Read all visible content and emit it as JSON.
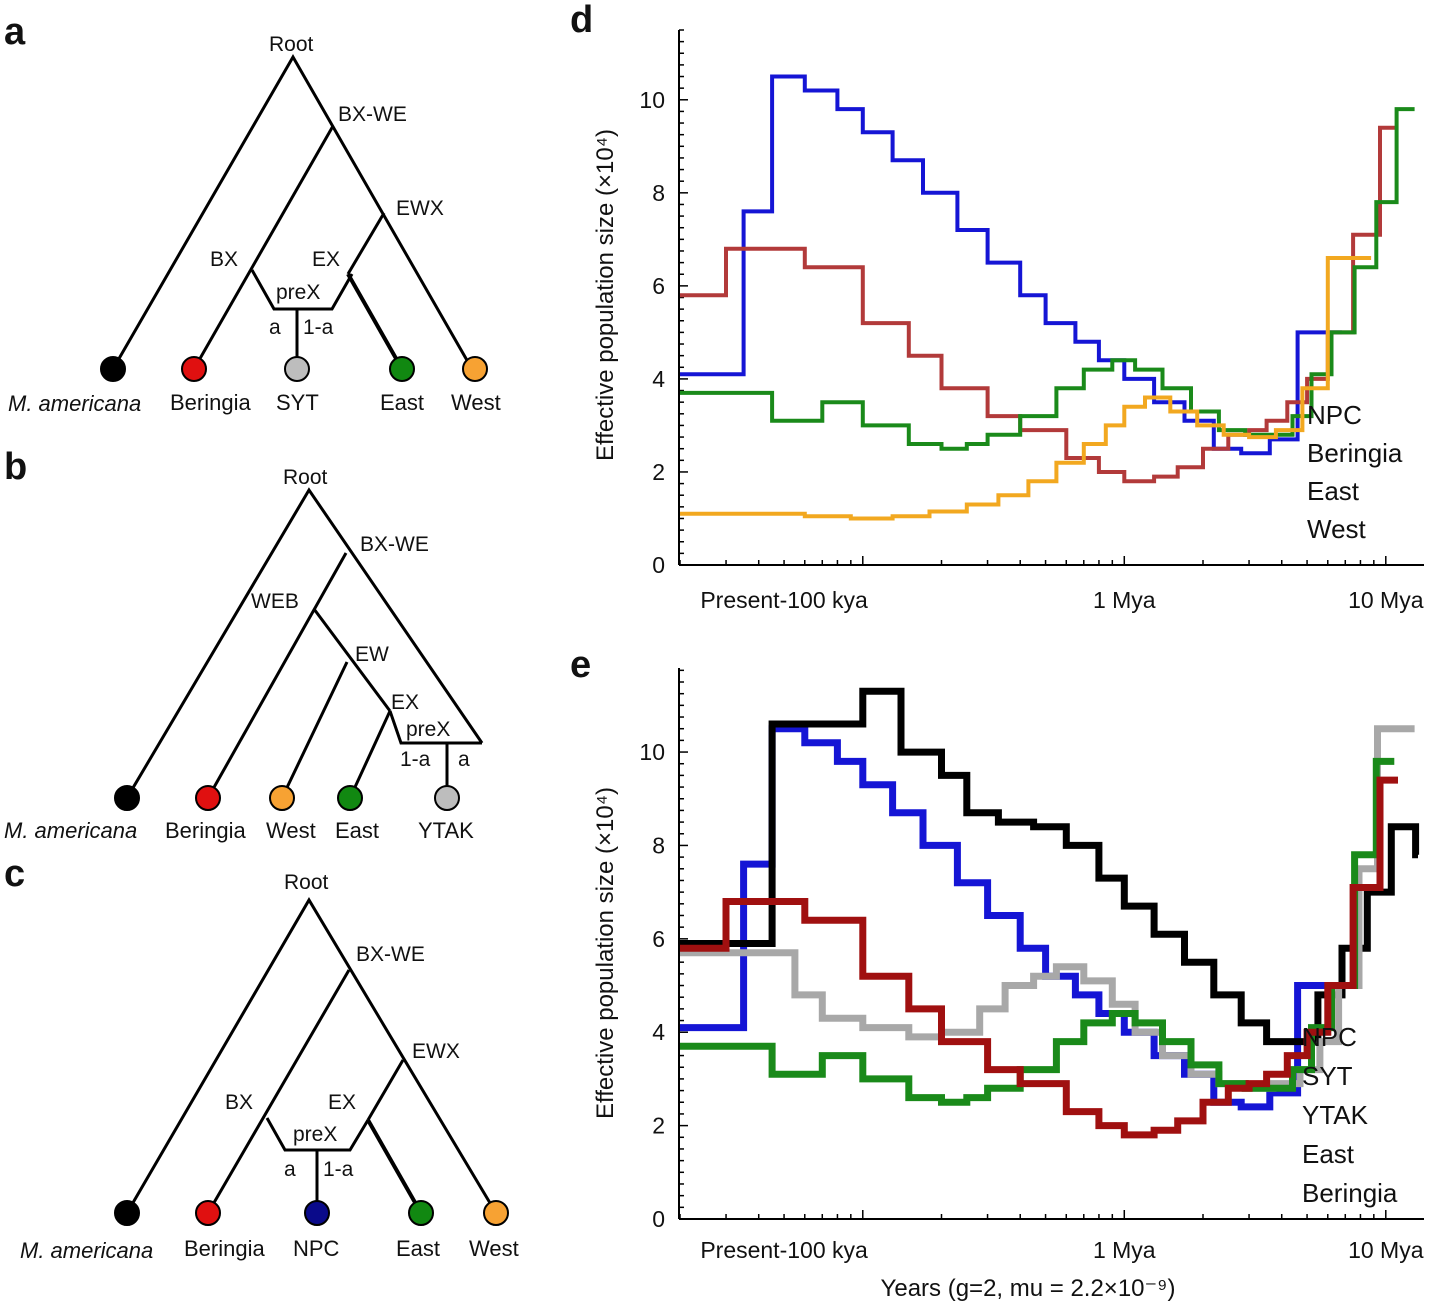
{
  "panels": {
    "a": {
      "letter": "a",
      "nodes": {
        "root": "Root",
        "bxwe": "BX-WE",
        "ewx": "EWX",
        "bx": "BX",
        "ex": "EX",
        "prex": "preX",
        "a": "a",
        "one_minus_a": "1-a"
      },
      "leaves": [
        {
          "label": "M. americana",
          "color": "#000000",
          "text_color": "#111111",
          "italic": true
        },
        {
          "label": "Beringia",
          "color": "#e01010",
          "text_color": "#8b1a1a",
          "italic": false
        },
        {
          "label": "SYT",
          "color": "#bdbdbd",
          "text_color": "#111111",
          "italic": false
        },
        {
          "label": "East",
          "color": "#118811",
          "text_color": "#118811",
          "italic": false
        },
        {
          "label": "West",
          "color": "#f7a233",
          "text_color": "#f5a020",
          "italic": false
        }
      ]
    },
    "b": {
      "letter": "b",
      "nodes": {
        "root": "Root",
        "bxwe": "BX-WE",
        "web": "WEB",
        "ew": "EW",
        "ex": "EX",
        "prex": "preX",
        "one_minus_a": "1-a",
        "a": "a"
      },
      "leaves": [
        {
          "label": "M. americana",
          "color": "#000000",
          "text_color": "#111111",
          "italic": true
        },
        {
          "label": "Beringia",
          "color": "#e01010",
          "text_color": "#8b1a1a",
          "italic": false
        },
        {
          "label": "West",
          "color": "#f7a233",
          "text_color": "#f5a020",
          "italic": false
        },
        {
          "label": "East",
          "color": "#118811",
          "text_color": "#118811",
          "italic": false
        },
        {
          "label": "YTAK",
          "color": "#bdbdbd",
          "text_color": "#111111",
          "italic": false
        }
      ]
    },
    "c": {
      "letter": "c",
      "nodes": {
        "root": "Root",
        "bxwe": "BX-WE",
        "ewx": "EWX",
        "bx": "BX",
        "ex": "EX",
        "prex": "preX",
        "a": "a",
        "one_minus_a": "1-a"
      },
      "leaves": [
        {
          "label": "M. americana",
          "color": "#000000",
          "text_color": "#111111",
          "italic": true
        },
        {
          "label": "Beringia",
          "color": "#e01010",
          "text_color": "#8b1a1a",
          "italic": false
        },
        {
          "label": "NPC",
          "color": "#0a0a8a",
          "text_color": "#101090",
          "italic": false
        },
        {
          "label": "East",
          "color": "#118811",
          "text_color": "#118811",
          "italic": false
        },
        {
          "label": "West",
          "color": "#f7a233",
          "text_color": "#f5a020",
          "italic": false
        }
      ]
    }
  },
  "chart_data": [
    {
      "panel": "d",
      "type": "line",
      "step": true,
      "ylabel": "Effective population size (×10⁴)",
      "xlabel": "",
      "x_scale": "log",
      "xlim_years": [
        20000,
        14000000
      ],
      "ylim": [
        0,
        11.5
      ],
      "yticks": [
        0,
        2,
        4,
        6,
        8,
        10
      ],
      "xticks": [
        {
          "label": "Present-100 kya",
          "value": 50000
        },
        {
          "label": "1 Mya",
          "value": 1000000
        },
        {
          "label": "10 Mya",
          "value": 10000000
        }
      ],
      "legend": [
        "NPC",
        "Beringia",
        "East",
        "West"
      ],
      "series": [
        {
          "name": "NPC",
          "color": "#1515d5",
          "width": 4,
          "x": [
            20000,
            35000,
            45000,
            60000,
            80000,
            100000,
            130000,
            170000,
            230000,
            300000,
            400000,
            500000,
            650000,
            800000,
            1000000,
            1300000,
            1700000,
            2200000,
            2800000,
            3600000,
            4600000,
            5800000
          ],
          "y": [
            4.1,
            7.6,
            10.5,
            10.2,
            9.8,
            9.3,
            8.7,
            8.0,
            7.2,
            6.5,
            5.8,
            5.2,
            4.8,
            4.4,
            4.0,
            3.5,
            3.1,
            2.5,
            2.4,
            2.7,
            5.0,
            5.0
          ]
        },
        {
          "name": "Beringia",
          "color": "#b23a3a",
          "width": 4,
          "x": [
            20000,
            30000,
            60000,
            100000,
            150000,
            200000,
            300000,
            400000,
            600000,
            800000,
            1000000,
            1300000,
            1600000,
            2000000,
            2500000,
            3000000,
            3500000,
            4200000,
            5000000,
            6000000,
            7500000,
            9500000
          ],
          "y": [
            5.8,
            6.8,
            6.4,
            5.2,
            4.5,
            3.8,
            3.2,
            2.9,
            2.3,
            2.0,
            1.8,
            1.9,
            2.1,
            2.5,
            2.8,
            2.9,
            3.1,
            3.5,
            4.0,
            5.0,
            7.1,
            9.4
          ]
        },
        {
          "name": "East",
          "color": "#1a8a1a",
          "width": 4,
          "x": [
            20000,
            45000,
            70000,
            100000,
            150000,
            200000,
            250000,
            300000,
            400000,
            550000,
            700000,
            900000,
            1100000,
            1400000,
            1800000,
            2300000,
            2900000,
            3600000,
            4400000,
            5200000,
            6200000,
            7600000,
            9200000,
            11000000
          ],
          "y": [
            3.7,
            3.1,
            3.5,
            3.0,
            2.6,
            2.5,
            2.6,
            2.8,
            3.2,
            3.8,
            4.2,
            4.4,
            4.2,
            3.8,
            3.3,
            2.9,
            2.8,
            2.8,
            3.2,
            4.1,
            5.0,
            6.4,
            7.8,
            9.8
          ]
        },
        {
          "name": "West",
          "color": "#f2a820",
          "width": 4,
          "x": [
            20000,
            40000,
            60000,
            90000,
            130000,
            180000,
            250000,
            330000,
            430000,
            550000,
            700000,
            850000,
            1000000,
            1200000,
            1500000,
            1900000,
            2400000,
            3000000,
            3800000,
            4800000,
            6000000,
            7500000
          ],
          "y": [
            1.1,
            1.1,
            1.05,
            1.0,
            1.05,
            1.15,
            1.3,
            1.5,
            1.8,
            2.2,
            2.6,
            3.0,
            3.4,
            3.6,
            3.3,
            3.0,
            2.8,
            2.75,
            2.9,
            3.8,
            6.6,
            6.6
          ]
        }
      ]
    },
    {
      "panel": "e",
      "type": "line",
      "step": true,
      "ylabel": "Effective population size (×10⁴)",
      "xlabel": "Years (g=2, mu = 2.2×10⁻⁹)",
      "x_scale": "log",
      "xlim_years": [
        20000,
        14000000
      ],
      "ylim": [
        0,
        11.8
      ],
      "yticks": [
        0,
        2,
        4,
        6,
        8,
        10
      ],
      "xticks": [
        {
          "label": "Present-100 kya",
          "value": 50000
        },
        {
          "label": "1 Mya",
          "value": 1000000
        },
        {
          "label": "10 Mya",
          "value": 10000000
        }
      ],
      "legend": [
        "NPC",
        "SYT",
        "YTAK",
        "East",
        "Beringia"
      ],
      "series": [
        {
          "name": "NPC",
          "color": "#1515d5",
          "width": 7,
          "x": [
            20000,
            35000,
            45000,
            60000,
            80000,
            100000,
            130000,
            170000,
            230000,
            300000,
            400000,
            500000,
            650000,
            800000,
            1000000,
            1300000,
            1700000,
            2200000,
            2800000,
            3600000,
            4600000,
            5800000
          ],
          "y": [
            4.1,
            7.6,
            10.5,
            10.2,
            9.8,
            9.3,
            8.7,
            8.0,
            7.2,
            6.5,
            5.8,
            5.2,
            4.8,
            4.4,
            4.0,
            3.5,
            3.1,
            2.5,
            2.4,
            2.7,
            5.0,
            5.0
          ]
        },
        {
          "name": "SYT",
          "color": "#000000",
          "width": 7,
          "x": [
            20000,
            45000,
            55000,
            100000,
            140000,
            200000,
            250000,
            330000,
            450000,
            600000,
            800000,
            1000000,
            1300000,
            1700000,
            2200000,
            2800000,
            3500000,
            4500000,
            5500000,
            6800000,
            8500000,
            10500000,
            13000000
          ],
          "y": [
            5.9,
            10.6,
            10.6,
            11.3,
            10.0,
            9.5,
            8.7,
            8.5,
            8.4,
            8.0,
            7.3,
            6.7,
            6.1,
            5.5,
            4.8,
            4.2,
            3.8,
            3.8,
            4.8,
            5.8,
            7.0,
            8.4,
            7.8
          ]
        },
        {
          "name": "YTAK",
          "color": "#a8a8a8",
          "width": 7,
          "x": [
            20000,
            40000,
            55000,
            70000,
            100000,
            150000,
            200000,
            280000,
            350000,
            450000,
            550000,
            700000,
            900000,
            1100000,
            1400000,
            1800000,
            2300000,
            2900000,
            3700000,
            4700000,
            5600000,
            6600000,
            7900000,
            9300000,
            11000000
          ],
          "y": [
            5.7,
            5.7,
            4.8,
            4.3,
            4.1,
            3.9,
            4.0,
            4.5,
            5.0,
            5.2,
            5.4,
            5.1,
            4.6,
            4.0,
            3.5,
            3.1,
            2.9,
            2.8,
            2.9,
            3.2,
            3.8,
            5.0,
            7.5,
            10.5,
            10.5
          ]
        },
        {
          "name": "East",
          "color": "#1a8a1a",
          "width": 7,
          "x": [
            20000,
            45000,
            70000,
            100000,
            150000,
            200000,
            250000,
            300000,
            400000,
            550000,
            700000,
            900000,
            1100000,
            1400000,
            1800000,
            2300000,
            2900000,
            3600000,
            4400000,
            5200000,
            6200000,
            7600000,
            9200000
          ],
          "y": [
            3.7,
            3.1,
            3.5,
            3.0,
            2.6,
            2.5,
            2.6,
            2.8,
            3.2,
            3.8,
            4.2,
            4.4,
            4.2,
            3.8,
            3.3,
            2.9,
            2.8,
            2.8,
            3.2,
            4.1,
            5.0,
            7.8,
            9.8
          ]
        },
        {
          "name": "Beringia",
          "color": "#a01010",
          "width": 7,
          "x": [
            20000,
            30000,
            60000,
            100000,
            150000,
            200000,
            300000,
            400000,
            600000,
            800000,
            1000000,
            1300000,
            1600000,
            2000000,
            2500000,
            3000000,
            3500000,
            4200000,
            5000000,
            6000000,
            7500000,
            9500000
          ],
          "y": [
            5.8,
            6.8,
            6.4,
            5.2,
            4.5,
            3.8,
            3.2,
            2.9,
            2.3,
            2.0,
            1.8,
            1.9,
            2.1,
            2.5,
            2.8,
            2.9,
            3.1,
            3.5,
            4.0,
            5.0,
            7.1,
            9.4
          ]
        }
      ]
    }
  ]
}
